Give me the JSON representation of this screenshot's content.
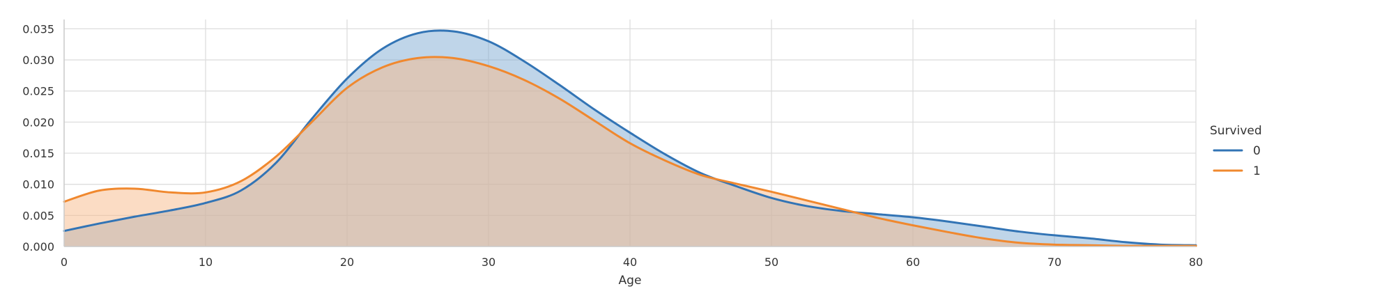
{
  "chart_data": {
    "type": "area",
    "title": "",
    "xlabel": "Age",
    "ylabel": "",
    "xlim": [
      0,
      80
    ],
    "ylim": [
      0,
      0.0365
    ],
    "xticks": [
      0,
      10,
      20,
      30,
      40,
      50,
      60,
      70,
      80
    ],
    "xtick_labels": [
      "0",
      "10",
      "20",
      "30",
      "40",
      "50",
      "60",
      "70",
      "80"
    ],
    "yticks": [
      0,
      0.005,
      0.01,
      0.015,
      0.02,
      0.025,
      0.03,
      0.035
    ],
    "ytick_labels": [
      "0.000",
      "0.005",
      "0.010",
      "0.015",
      "0.020",
      "0.025",
      "0.030",
      "0.035"
    ],
    "grid": true,
    "legend": {
      "title": "Survived",
      "placement": "right"
    },
    "x": [
      0,
      2.5,
      5,
      7.5,
      10,
      12.5,
      15,
      17.5,
      20,
      22.5,
      25,
      27.5,
      30,
      32.5,
      35,
      37.5,
      40,
      42.5,
      45,
      47.5,
      50,
      52.5,
      55,
      57.5,
      60,
      62.5,
      65,
      67.5,
      70,
      72.5,
      75,
      77.5,
      80
    ],
    "series": [
      {
        "name": "0",
        "color": "#3274b5",
        "fill": "#7fabd3",
        "values": [
          0.0025,
          0.0037,
          0.0048,
          0.0058,
          0.007,
          0.009,
          0.0135,
          0.0205,
          0.027,
          0.0318,
          0.0343,
          0.0346,
          0.033,
          0.0298,
          0.026,
          0.022,
          0.0183,
          0.0148,
          0.0118,
          0.0097,
          0.0078,
          0.0065,
          0.0057,
          0.0052,
          0.0047,
          0.004,
          0.0032,
          0.0024,
          0.0018,
          0.0013,
          0.0007,
          0.0003,
          0.0002
        ]
      },
      {
        "name": "1",
        "color": "#f0882e",
        "fill": "#f7b98a",
        "values": [
          0.0072,
          0.009,
          0.0093,
          0.0087,
          0.0087,
          0.0105,
          0.0145,
          0.02,
          0.0255,
          0.0288,
          0.0303,
          0.0303,
          0.029,
          0.0268,
          0.0238,
          0.0202,
          0.0166,
          0.0138,
          0.0115,
          0.0101,
          0.0088,
          0.0074,
          0.006,
          0.0046,
          0.0034,
          0.0023,
          0.0013,
          0.0006,
          0.0003,
          0.0002,
          0.0001,
          0.0001,
          0.0001
        ]
      }
    ]
  }
}
